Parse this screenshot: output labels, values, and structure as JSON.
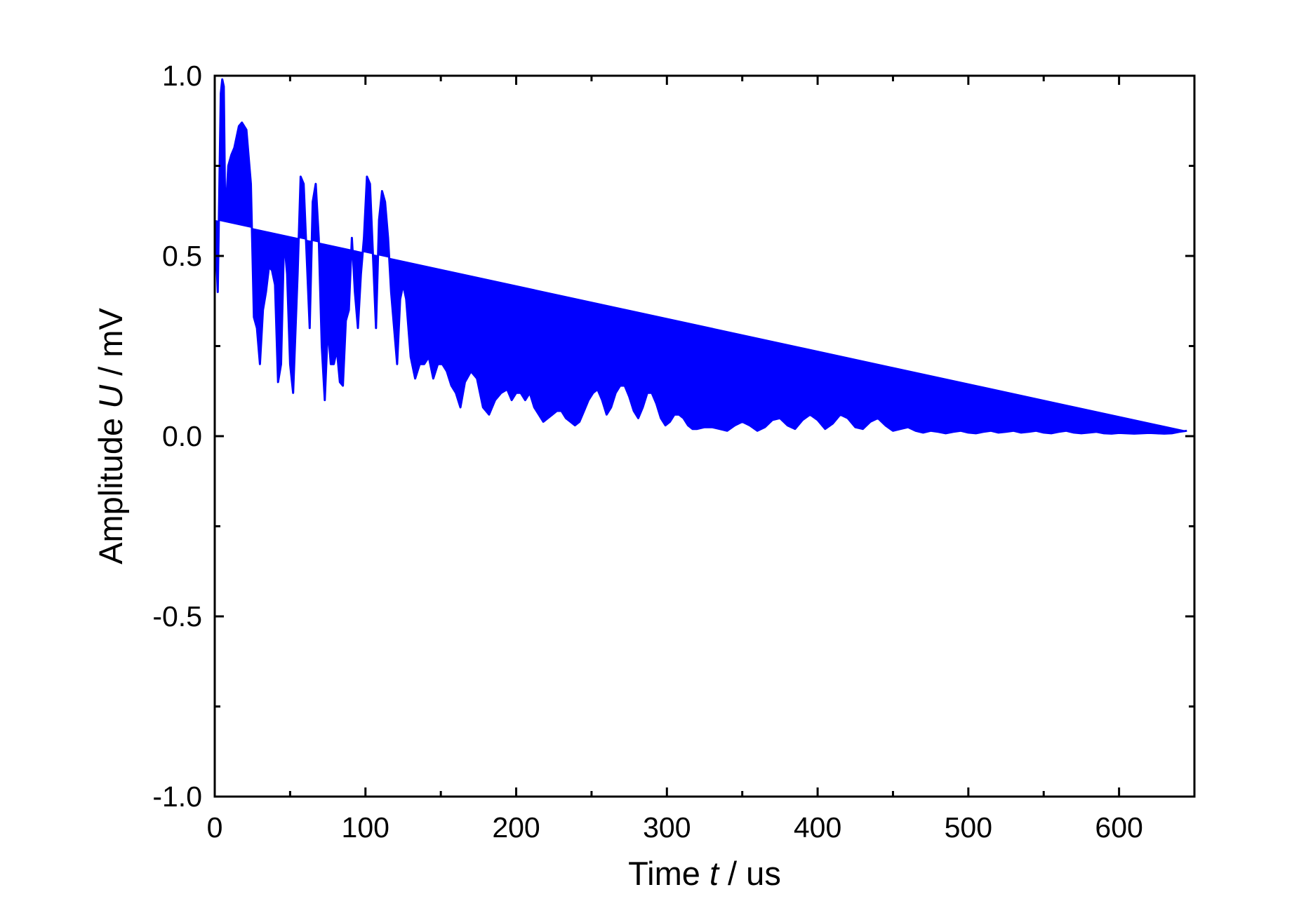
{
  "chart_data": {
    "type": "line",
    "title": "",
    "xlabel_parts": {
      "prefix": "Time ",
      "var": "t",
      "suffix": " / us"
    },
    "ylabel_parts": {
      "prefix": "Amplitude ",
      "var": "U",
      "suffix": " / mV"
    },
    "xlim": [
      0,
      650
    ],
    "ylim": [
      -1.0,
      1.0
    ],
    "xticks": [
      0,
      100,
      200,
      300,
      400,
      500,
      600
    ],
    "xtick_labels": [
      "0",
      "100",
      "200",
      "300",
      "400",
      "500",
      "600"
    ],
    "xminor_ticks": [
      50,
      150,
      250,
      350,
      450,
      550,
      650
    ],
    "yticks": [
      -1.0,
      -0.5,
      0.0,
      0.5,
      1.0
    ],
    "ytick_labels": [
      "-1.0",
      "-0.5",
      "0.0",
      "0.5",
      "1.0"
    ],
    "yminor_ticks": [
      -0.75,
      -0.25,
      0.25,
      0.75
    ],
    "grid": false,
    "legend": "none",
    "series": [
      {
        "color": "#0000ff",
        "envelope": {
          "t": [
            0,
            2,
            4,
            5,
            6,
            7,
            9,
            11,
            13,
            16,
            18,
            21,
            24,
            26,
            28,
            30,
            32,
            34,
            36,
            38,
            40,
            42,
            44,
            46,
            48,
            50,
            52,
            55,
            57,
            59,
            61,
            63,
            65,
            67,
            69,
            71,
            73,
            75,
            77,
            79,
            81,
            83,
            85,
            87,
            89,
            91,
            93,
            95,
            97,
            99,
            101,
            103,
            105,
            107,
            109,
            111,
            113,
            115,
            117,
            119,
            121,
            123,
            125,
            127,
            130,
            133,
            136,
            139,
            142,
            145,
            148,
            151,
            154,
            157,
            160,
            163,
            166,
            170,
            174,
            178,
            182,
            186,
            190,
            194,
            197,
            200,
            203,
            206,
            209,
            212,
            215,
            218,
            221,
            224,
            227,
            230,
            233,
            236,
            239,
            242,
            245,
            248,
            251,
            254,
            257,
            260,
            263,
            266,
            269,
            272,
            275,
            278,
            281,
            284,
            287,
            290,
            293,
            296,
            299,
            302,
            305,
            308,
            311,
            314,
            317,
            320,
            325,
            330,
            335,
            340,
            345,
            350,
            355,
            360,
            365,
            370,
            375,
            380,
            385,
            390,
            395,
            400,
            405,
            410,
            415,
            420,
            425,
            430,
            435,
            440,
            445,
            450,
            455,
            460,
            465,
            470,
            475,
            480,
            485,
            490,
            495,
            500,
            505,
            510,
            515,
            520,
            525,
            530,
            535,
            540,
            545,
            550,
            555,
            560,
            565,
            570,
            575,
            580,
            585,
            590,
            595,
            600,
            605,
            610,
            615,
            620,
            625,
            630,
            635,
            640,
            645,
            650
          ],
          "amp": [
            0.6,
            0.4,
            0.95,
            0.99,
            0.97,
            0.6,
            0.75,
            0.78,
            0.8,
            0.86,
            0.87,
            0.85,
            0.7,
            0.33,
            0.3,
            0.2,
            0.35,
            0.4,
            0.47,
            0.46,
            0.42,
            0.15,
            0.2,
            0.55,
            0.45,
            0.2,
            0.12,
            0.45,
            0.72,
            0.7,
            0.5,
            0.3,
            0.65,
            0.7,
            0.55,
            0.25,
            0.1,
            0.3,
            0.2,
            0.2,
            0.24,
            0.15,
            0.14,
            0.32,
            0.35,
            0.55,
            0.4,
            0.3,
            0.45,
            0.55,
            0.72,
            0.7,
            0.5,
            0.3,
            0.6,
            0.68,
            0.65,
            0.55,
            0.4,
            0.3,
            0.2,
            0.38,
            0.42,
            0.38,
            0.22,
            0.16,
            0.2,
            0.2,
            0.22,
            0.16,
            0.2,
            0.2,
            0.18,
            0.14,
            0.12,
            0.08,
            0.15,
            0.18,
            0.16,
            0.08,
            0.06,
            0.1,
            0.12,
            0.13,
            0.1,
            0.12,
            0.12,
            0.1,
            0.12,
            0.08,
            0.06,
            0.04,
            0.05,
            0.06,
            0.07,
            0.07,
            0.05,
            0.04,
            0.03,
            0.04,
            0.07,
            0.1,
            0.12,
            0.13,
            0.1,
            0.06,
            0.08,
            0.12,
            0.14,
            0.14,
            0.11,
            0.07,
            0.05,
            0.08,
            0.12,
            0.12,
            0.09,
            0.05,
            0.03,
            0.04,
            0.06,
            0.06,
            0.05,
            0.03,
            0.02,
            0.02,
            0.025,
            0.025,
            0.02,
            0.015,
            0.03,
            0.04,
            0.03,
            0.015,
            0.025,
            0.045,
            0.05,
            0.03,
            0.02,
            0.045,
            0.06,
            0.045,
            0.02,
            0.035,
            0.06,
            0.05,
            0.025,
            0.02,
            0.04,
            0.05,
            0.03,
            0.015,
            0.02,
            0.025,
            0.015,
            0.01,
            0.015,
            0.012,
            0.008,
            0.012,
            0.015,
            0.01,
            0.008,
            0.012,
            0.015,
            0.01,
            0.012,
            0.015,
            0.01,
            0.012,
            0.015,
            0.01,
            0.008,
            0.012,
            0.015,
            0.01,
            0.008,
            0.01,
            0.012,
            0.008,
            0.007,
            0.009,
            0.008,
            0.007,
            0.008,
            0.009,
            0.008,
            0.007,
            0.008,
            0.012,
            0.015
          ]
        }
      }
    ]
  }
}
